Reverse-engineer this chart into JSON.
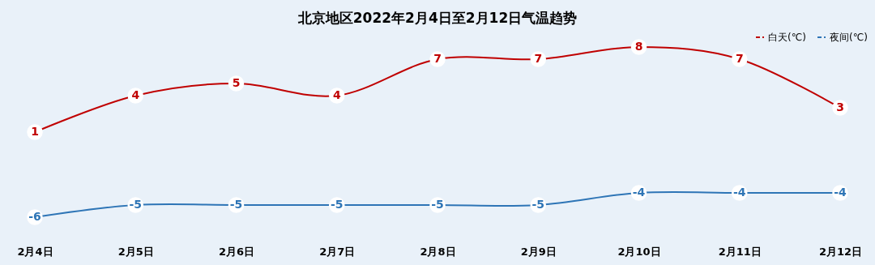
{
  "chart_data": {
    "type": "line",
    "title": "北京地区2022年2月4日至2月12日气温趋势",
    "categories": [
      "2月4日",
      "2月5日",
      "2月6日",
      "2月7日",
      "2月8日",
      "2月9日",
      "2月10日",
      "2月11日",
      "2月12日"
    ],
    "series": [
      {
        "name": "白天(℃)",
        "color": "#c00000",
        "values": [
          1,
          4,
          5,
          4,
          7,
          7,
          8,
          7,
          3
        ]
      },
      {
        "name": "夜间(℃)",
        "color": "#2e75b6",
        "values": [
          -6,
          -5,
          -5,
          -5,
          -5,
          -5,
          -4,
          -4,
          -4
        ]
      }
    ],
    "data_labels": true,
    "marker": "circle",
    "line_style": "solid",
    "legend": "top right",
    "grid": false
  }
}
